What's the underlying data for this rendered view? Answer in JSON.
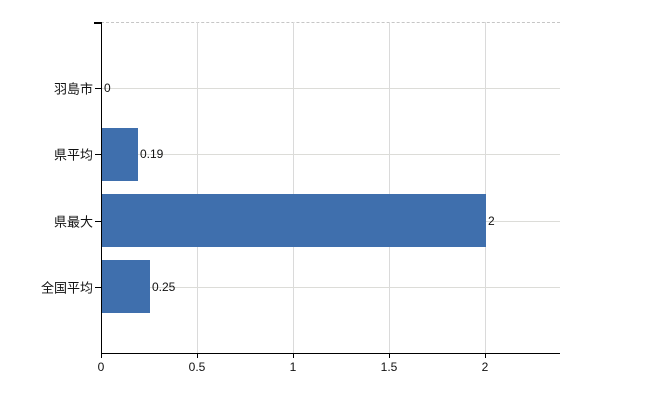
{
  "chart_data": {
    "type": "bar",
    "orientation": "horizontal",
    "title": "",
    "categories": [
      "羽島市",
      "県平均",
      "県最大",
      "全国平均"
    ],
    "values": [
      0,
      0.19,
      2,
      0.25
    ],
    "value_labels": [
      "0",
      "0.19",
      "2",
      "0.25"
    ],
    "x_ticks": [
      0,
      0.5,
      1,
      1.5,
      2
    ],
    "x_tick_labels": [
      "0",
      "0.5",
      "1",
      "1.5",
      "2"
    ],
    "xlim": [
      0,
      2.39
    ],
    "grid": true,
    "legend": false,
    "bar_color": "#3f6fad",
    "grid_color": "#dadada",
    "axis_color": "#000000",
    "text_color": "#111111"
  }
}
